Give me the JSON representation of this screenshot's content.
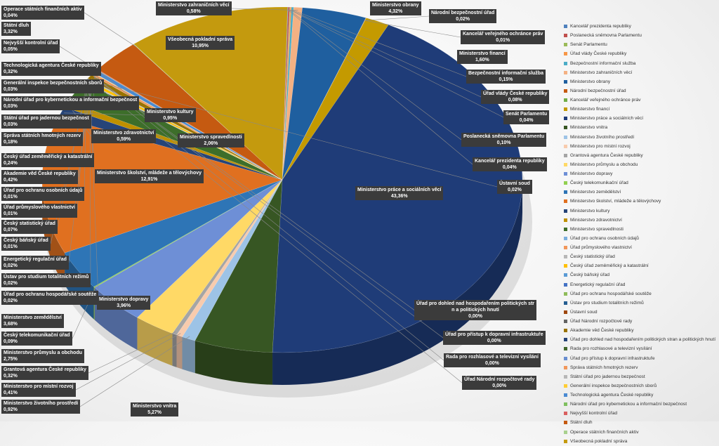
{
  "chart_data": {
    "type": "pie",
    "title": "",
    "unit": "%",
    "series": [
      {
        "name": "Kancelář prezidenta republiky",
        "value": 0.04,
        "color": "#4f81bd",
        "label_text": "0,04%"
      },
      {
        "name": "Poslanecká sněmovna Parlamentu",
        "value": 0.1,
        "color": "#c0504d",
        "label_text": "0,10%"
      },
      {
        "name": "Senát Parlamentu",
        "value": 0.04,
        "color": "#9bbb59",
        "label_text": "0,04%"
      },
      {
        "name": "Úřad vlády České republiky",
        "value": 0.08,
        "color": "#f79646",
        "label_text": "0,08%"
      },
      {
        "name": "Bezpečnostní informační služba",
        "value": 0.15,
        "color": "#4bacc6",
        "label_text": "0,15%"
      },
      {
        "name": "Ministerstvo zahraničních věcí",
        "value": 0.58,
        "color": "#f4b183",
        "label_text": "0,58%"
      },
      {
        "name": "Ministerstvo obrany",
        "value": 4.32,
        "color": "#1f5f9f",
        "label_text": "4,32%"
      },
      {
        "name": "Národní bezpečnostní úřad",
        "value": 0.02,
        "color": "#c55a11",
        "label_text": "0,02%"
      },
      {
        "name": "Kancelář veřejného ochránce práv",
        "value": 0.01,
        "color": "#70ad47",
        "label_text": "0,01%"
      },
      {
        "name": "Ministerstvo financí",
        "value": 1.6,
        "color": "#c49a00",
        "label_text": "1,60%"
      },
      {
        "name": "Ministerstvo práce a sociálních věcí",
        "value": 43.36,
        "color": "#1f3c78",
        "label_text": "43,36%"
      },
      {
        "name": "Ministerstvo vnitra",
        "value": 5.27,
        "color": "#375623",
        "label_text": "5,27%"
      },
      {
        "name": "Ministerstvo životního prostředí",
        "value": 0.92,
        "color": "#9dc3e6",
        "label_text": "0,92%"
      },
      {
        "name": "Ministerstvo pro místní rozvoj",
        "value": 0.41,
        "color": "#f8cbad",
        "label_text": "0,41%"
      },
      {
        "name": "Grantová agentura České republiky",
        "value": 0.32,
        "color": "#a5a5a5",
        "label_text": "0,32%"
      },
      {
        "name": "Ministerstvo průmyslu a obchodu",
        "value": 2.75,
        "color": "#ffd966",
        "label_text": "2,75%"
      },
      {
        "name": "Ministerstvo dopravy",
        "value": 3.96,
        "color": "#6e8fd6",
        "label_text": "3,96%"
      },
      {
        "name": "Český telekomunikační úřad",
        "value": 0.09,
        "color": "#92d050",
        "label_text": "0,09%"
      },
      {
        "name": "Ministerstvo zemědělství",
        "value": 3.68,
        "color": "#2e75b6",
        "label_text": "3,68%"
      },
      {
        "name": "Ministerstvo školství, mládeže a tělovýchovy",
        "value": 12.91,
        "color": "#e07020",
        "label_text": "12,91%"
      },
      {
        "name": "Ministerstvo kultury",
        "value": 0.95,
        "color": "#264478",
        "label_text": "0,95%"
      },
      {
        "name": "Ministerstvo zdravotnictví",
        "value": 0.59,
        "color": "#bf9000",
        "label_text": "0,59%"
      },
      {
        "name": "Ministerstvo spravedlnosti",
        "value": 2.06,
        "color": "#3d6e2a",
        "label_text": "2,06%"
      },
      {
        "name": "Úřad pro ochranu osobních údajů",
        "value": 0.01,
        "color": "#7cafdd",
        "label_text": "0,01%"
      },
      {
        "name": "Úřad průmyslového vlastnictví",
        "value": 0.01,
        "color": "#f1975a",
        "label_text": "0,01%"
      },
      {
        "name": "Český statistický úřad",
        "value": 0.07,
        "color": "#b7b7b7",
        "label_text": "0,07%"
      },
      {
        "name": "Český úřad zeměměřický a katastrální",
        "value": 0.24,
        "color": "#ffc000",
        "label_text": "0,24%"
      },
      {
        "name": "Český báňský úřad",
        "value": 0.01,
        "color": "#5b9bd5",
        "label_text": "0,01%"
      },
      {
        "name": "Energetický regulační úřad",
        "value": 0.02,
        "color": "#4472c4",
        "label_text": "0,02%"
      },
      {
        "name": "Úřad pro ochranu hospodářské soutěže",
        "value": 0.02,
        "color": "#8fbc5a",
        "label_text": "0,02%"
      },
      {
        "name": "Ústav pro studium totalitních režimů",
        "value": 0.02,
        "color": "#255e91",
        "label_text": "0,02%"
      },
      {
        "name": "Ústavní soud",
        "value": 0.02,
        "color": "#9e480e",
        "label_text": "0,02%"
      },
      {
        "name": "Úřad Národní rozpočtové rady",
        "value": 0.0,
        "color": "#636363",
        "label_text": "0,00%"
      },
      {
        "name": "Akademie věd České republiky",
        "value": 0.42,
        "color": "#997300",
        "label_text": "0,42%"
      },
      {
        "name": "Úřad pro dohled nad hospodařením politických stran a politických hnutí",
        "value": 0.0,
        "color": "#264478",
        "label_text": "0,00%"
      },
      {
        "name": "Rada pro rozhlasové a televizní vysílání",
        "value": 0.0,
        "color": "#43682b",
        "label_text": "0,00%"
      },
      {
        "name": "Úřad pro přístup k dopravní infrastruktuře",
        "value": 0.0,
        "color": "#698ed0",
        "label_text": "0,00%"
      },
      {
        "name": "Správa státních hmotných rezerv",
        "value": 0.18,
        "color": "#f1975a",
        "label_text": "0,18%"
      },
      {
        "name": "Státní úřad pro jadernou bezpečnost",
        "value": 0.03,
        "color": "#b7b7b7",
        "label_text": "0,03%"
      },
      {
        "name": "Generální inspekce bezpečnostních sborů",
        "value": 0.03,
        "color": "#ffcd33",
        "label_text": "0,03%"
      },
      {
        "name": "Technologická agentura České republiky",
        "value": 0.32,
        "color": "#4a8ad2",
        "label_text": "0,32%"
      },
      {
        "name": "Národní úřad pro kybernetickou a informační bezpečnost",
        "value": 0.03,
        "color": "#7fbf5f",
        "label_text": "0,03%"
      },
      {
        "name": "Nejvyšší kontrolní úřad",
        "value": 0.05,
        "color": "#d95f5f",
        "label_text": "0,05%"
      },
      {
        "name": "Státní dluh",
        "value": 3.32,
        "color": "#c55a11",
        "label_text": "3,32%"
      },
      {
        "name": "Operace státních finančních aktiv",
        "value": 0.04,
        "color": "#a9d18e",
        "label_text": "0,04%"
      },
      {
        "name": "Všeobecná pokladní správa",
        "value": 10.95,
        "color": "#c49a0e",
        "label_text": "10,95%"
      }
    ],
    "legend_position": "right"
  }
}
